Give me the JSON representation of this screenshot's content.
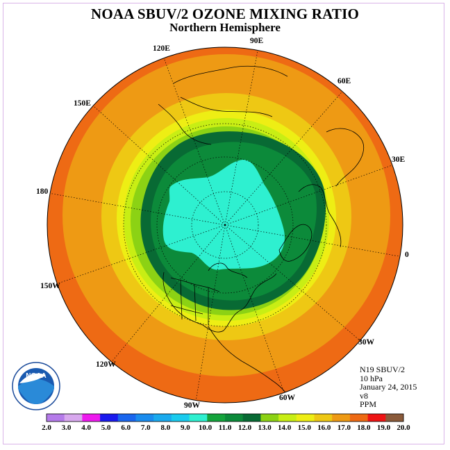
{
  "header": {
    "title": "NOAA SBUV/2 OZONE MIXING RATIO",
    "subtitle": "Northern Hemisphere"
  },
  "info": {
    "satellite": "N19 SBUV/2",
    "level": "10 hPa",
    "date": "January 24, 2015",
    "version": "v8",
    "units": "PPM"
  },
  "logo": {
    "name": "noaa-logo",
    "text": "NOAA"
  },
  "longitude_labels": [
    {
      "key": "lon-90e",
      "text": "90E"
    },
    {
      "key": "lon-60e",
      "text": "60E"
    },
    {
      "key": "lon-30e",
      "text": "30E"
    },
    {
      "key": "lon-0",
      "text": "0"
    },
    {
      "key": "lon-30w",
      "text": "30W"
    },
    {
      "key": "lon-60w",
      "text": "60W"
    },
    {
      "key": "lon-90w",
      "text": "90W"
    },
    {
      "key": "lon-120w",
      "text": "120W"
    },
    {
      "key": "lon-150w",
      "text": "150W"
    },
    {
      "key": "lon-180",
      "text": "180"
    },
    {
      "key": "lon-150e",
      "text": "150E"
    },
    {
      "key": "lon-120e",
      "text": "120E"
    }
  ],
  "colorbar": {
    "ticks": [
      "2.0",
      "3.0",
      "4.0",
      "5.0",
      "6.0",
      "7.0",
      "8.0",
      "9.0",
      "10.0",
      "11.0",
      "12.0",
      "13.0",
      "14.0",
      "15.0",
      "16.0",
      "17.0",
      "18.0",
      "19.0",
      "20.0"
    ],
    "colors": [
      "#b57bea",
      "#d8a8ee",
      "#ee1aee",
      "#1a1aee",
      "#1a66ee",
      "#1a8cee",
      "#1aaaee",
      "#1acbee",
      "#2ef0d0",
      "#14a43c",
      "#0c8a3a",
      "#086a34",
      "#8cd214",
      "#c8ee14",
      "#eeee14",
      "#eec814",
      "#ee9a14",
      "#ee6a14",
      "#ee1414",
      "#8a5a3a"
    ]
  },
  "palette": {
    "bg": "#ffffff",
    "c_19": "#ee1414",
    "c_18": "#ee6a14",
    "c_17": "#ee9a14",
    "c_16": "#eec814",
    "c_15": "#eeee14",
    "c_14": "#c8ee14",
    "c_13": "#8cd214",
    "c_12": "#086a34",
    "c_11": "#0c8a3a",
    "c_10": "#2ef0d0"
  }
}
